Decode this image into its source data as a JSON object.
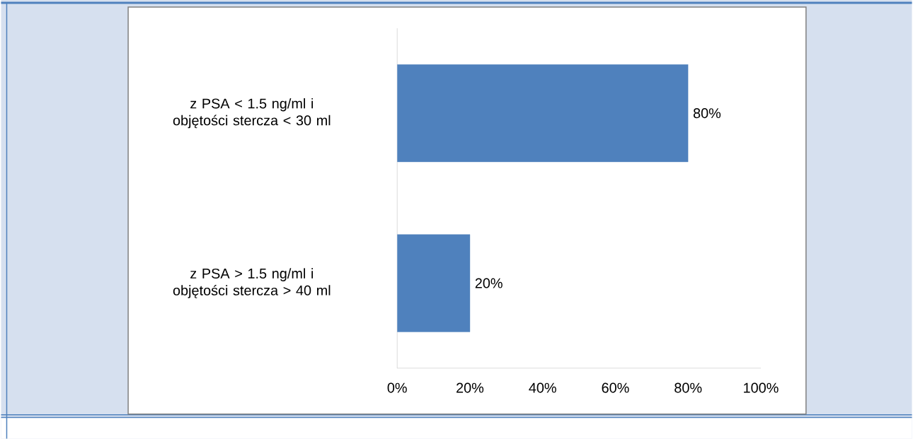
{
  "chart_data": {
    "type": "bar",
    "orientation": "horizontal",
    "categories": [
      "z PSA < 1.5 ng/ml i objętości stercza < 30 ml",
      "z PSA > 1.5 ng/ml i objętości stercza > 40 ml"
    ],
    "values": [
      80,
      20
    ],
    "value_labels": [
      "80%",
      "20%"
    ],
    "color": "#4f81bd",
    "xlim": [
      0,
      100
    ],
    "xticks": [
      {
        "value": 0,
        "label": "0%"
      },
      {
        "value": 20,
        "label": "20%"
      },
      {
        "value": 40,
        "label": "40%"
      },
      {
        "value": 60,
        "label": "60%"
      },
      {
        "value": 80,
        "label": "80%"
      },
      {
        "value": 100,
        "label": "100%"
      }
    ]
  }
}
